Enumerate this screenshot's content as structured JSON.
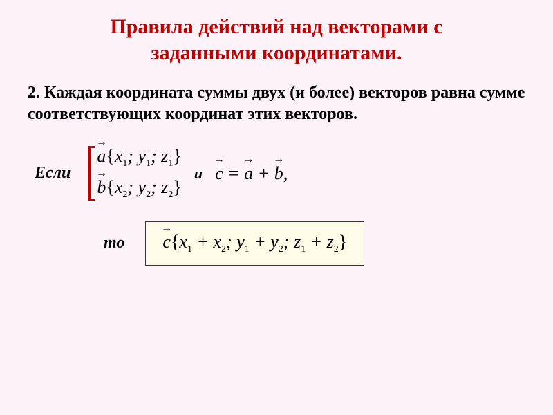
{
  "title_line1": "Правила действий над векторами с",
  "title_line2": "заданными координатами.",
  "body": "2. Каждая координата суммы двух (и более) векторов равна сумме соответствующих координат этих векторов.",
  "labels": {
    "if": "Если",
    "and": "и",
    "then": "то"
  },
  "vectors": {
    "a_name": "a",
    "a_coords": "{x₁; y₁; z₁}",
    "b_name": "b",
    "b_coords": "{x₂; y₂; z₂}",
    "c_name": "c",
    "sum_eq": " = a + b,",
    "result_coords": "{x₁ + x₂; y₁ + y₂; z₁ + z₂}"
  },
  "colors": {
    "title": "#c00000",
    "bracket": "#c00000",
    "background": "#fdf2f8",
    "box_bg": "#fefce8",
    "box_border": "#333333"
  }
}
